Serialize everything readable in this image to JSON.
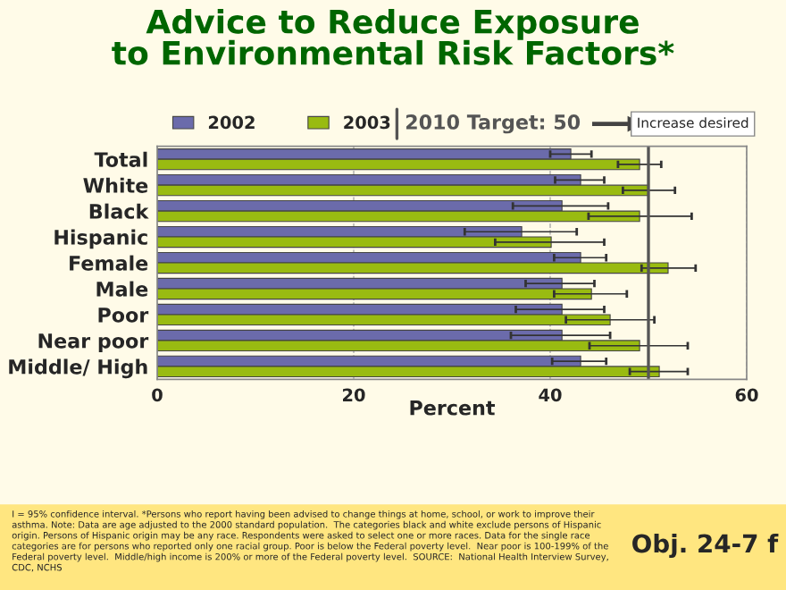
{
  "chart_data": {
    "type": "bar",
    "orientation": "horizontal",
    "title": "Advice to Reduce Exposure\nto Environmental Risk Factors*",
    "categories": [
      "Total",
      "White",
      "Black",
      "Hispanic",
      "Female",
      "Male",
      "Poor",
      "Near poor",
      "Middle/ High"
    ],
    "series": [
      {
        "name": "2002",
        "color": "#6b6bab",
        "values": [
          42.1,
          43.1,
          41.2,
          37.1,
          43.1,
          41.2,
          41.2,
          41.2,
          43.1
        ],
        "errors": [
          [
            40,
            44.2
          ],
          [
            40.5,
            45.5
          ],
          [
            36.2,
            45.9
          ],
          [
            31.3,
            42.7
          ],
          [
            40.4,
            45.7
          ],
          [
            37.5,
            44.5
          ],
          [
            36.5,
            45.5
          ],
          [
            36,
            46.1
          ],
          [
            40.2,
            45.7
          ]
        ]
      },
      {
        "name": "2003",
        "color": "#99bb11",
        "values": [
          49.1,
          50.0,
          49.1,
          40.1,
          52.0,
          44.2,
          46.1,
          49.1,
          51.1
        ],
        "errors": [
          [
            46.9,
            51.3
          ],
          [
            47.4,
            52.7
          ],
          [
            43.9,
            54.4
          ],
          [
            34.4,
            45.5
          ],
          [
            49.3,
            54.8
          ],
          [
            40.4,
            47.8
          ],
          [
            41.6,
            50.6
          ],
          [
            44,
            54
          ],
          [
            48.1,
            54
          ]
        ]
      }
    ],
    "xlabel": "Percent",
    "xlim": [
      0,
      60
    ],
    "xticks": [
      0,
      20,
      40,
      60
    ],
    "grid": "x",
    "legend": "top",
    "ref_lines": [
      {
        "axis": "x",
        "value": 50,
        "label": "2010 Target: 50",
        "color": "#555555"
      }
    ],
    "annotations": [
      "Increase desired",
      "I = 95% confidence interval. *Persons who report having been advised to change things at home, school, or work to improve their asthma. Note: Data are age adjusted to the 2000 standard population.  The categories black and white exclude persons of Hispanic origin. Persons of Hispanic origin may be any race. Respondents were asked to select one or more races. Data for the single race categories are for persons who reported only one racial group. Poor is below the Federal poverty level.  Near poor is 100-199% of the Federal poverty level.  Middle/high income is 200% or more of the Federal poverty level.  SOURCE:  National Health Interview Survey, CDC, NCHS",
      "Obj. 24-7 f"
    ]
  }
}
